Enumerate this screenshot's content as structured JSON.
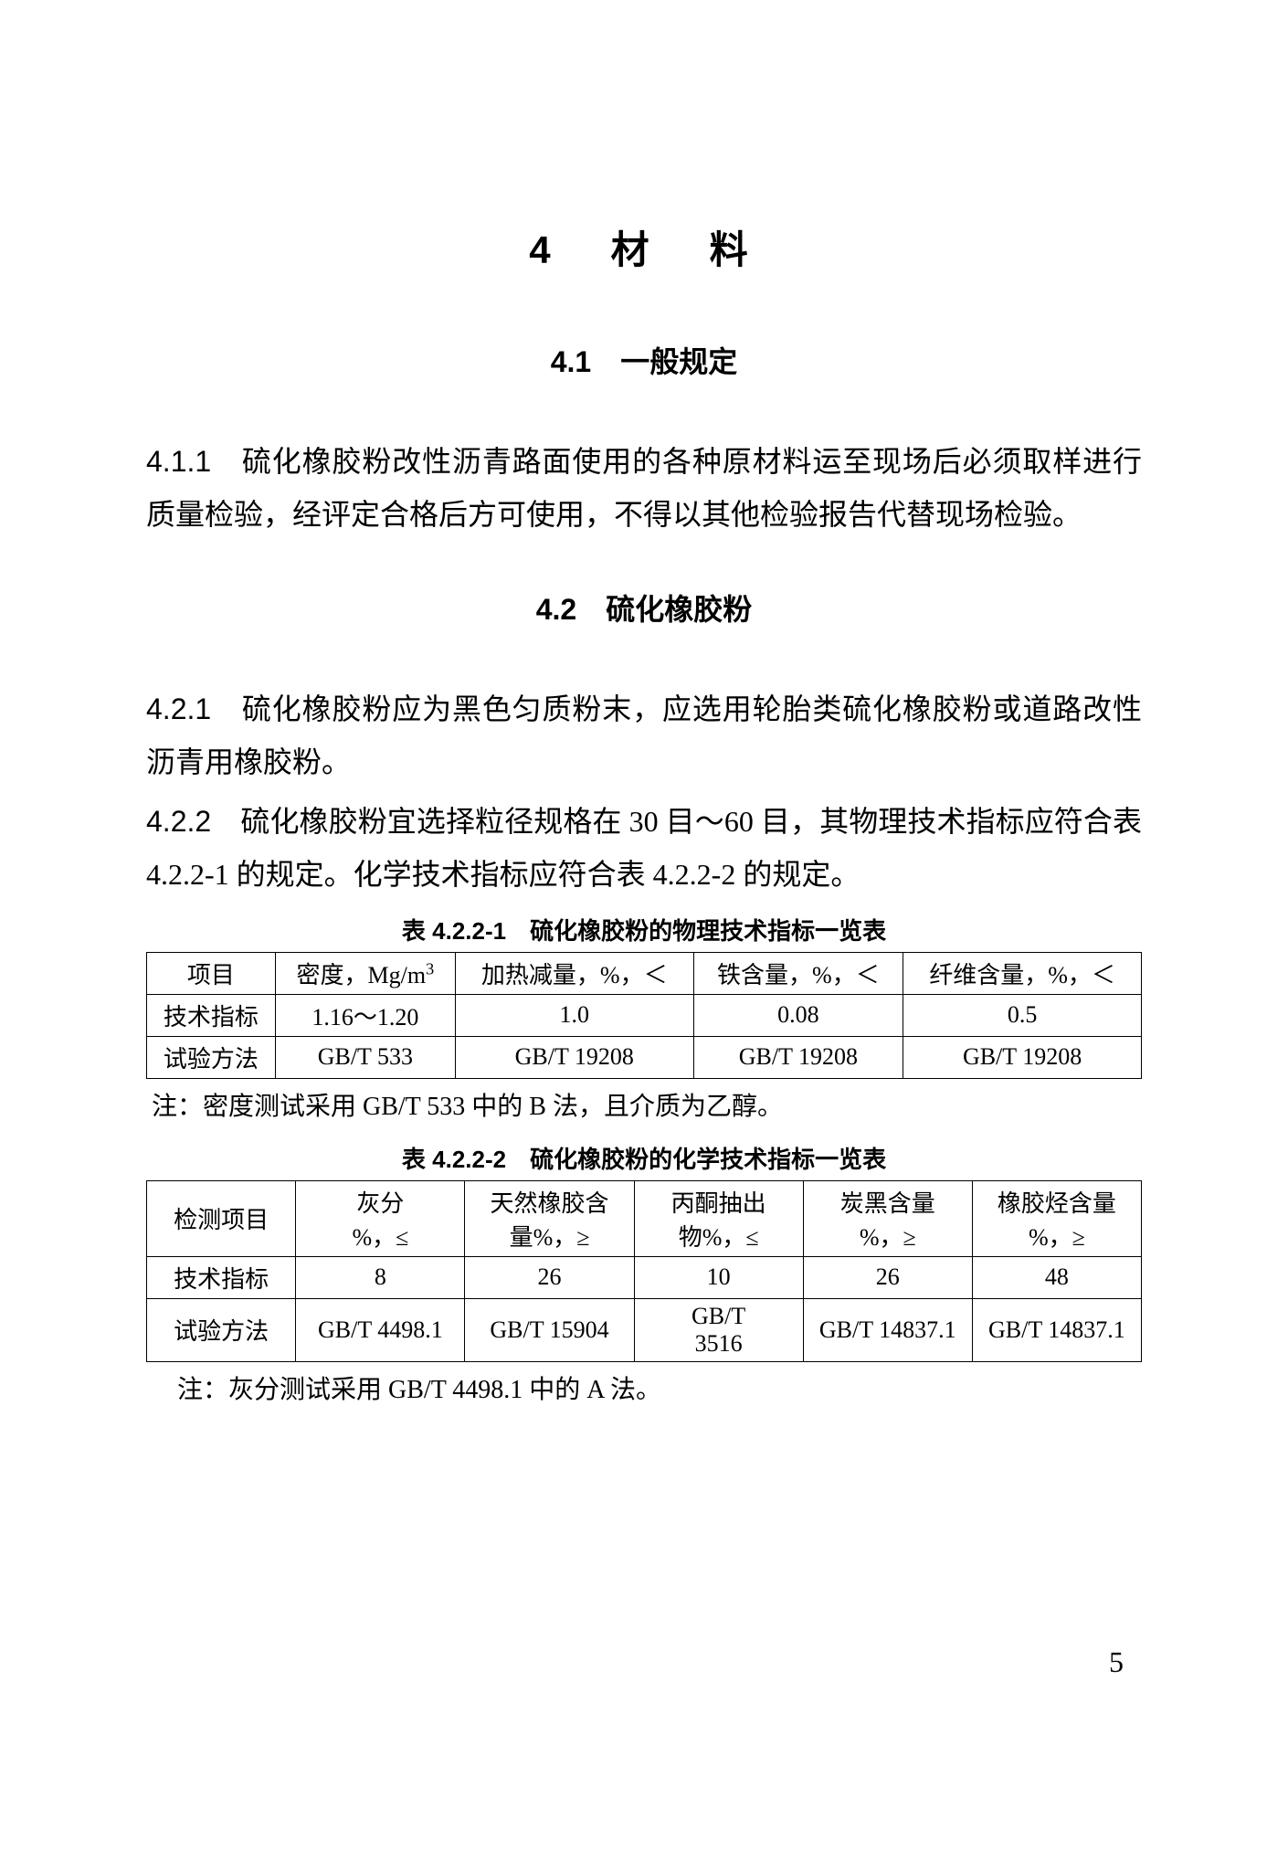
{
  "chapter": {
    "number": "4",
    "title": "材　料"
  },
  "sections": {
    "s41": {
      "number": "4.1",
      "title": "一般规定"
    },
    "s42": {
      "number": "4.2",
      "title": "硫化橡胶粉"
    }
  },
  "paragraphs": {
    "p411": {
      "num": "4.1.1",
      "text": "硫化橡胶粉改性沥青路面使用的各种原材料运至现场后必须取样进行质量检验，经评定合格后方可使用，不得以其他检验报告代替现场检验。"
    },
    "p421": {
      "num": "4.2.1",
      "text": "硫化橡胶粉应为黑色匀质粉末，应选用轮胎类硫化橡胶粉或道路改性沥青用橡胶粉。"
    },
    "p422": {
      "num": "4.2.2",
      "text": "硫化橡胶粉宜选择粒径规格在 30 目～60 目，其物理技术指标应符合表 4.2.2-1 的规定。化学技术指标应符合表 4.2.2-2 的规定。"
    }
  },
  "table1": {
    "title": "表 4.2.2-1　硫化橡胶粉的物理技术指标一览表",
    "headers": [
      "项目",
      "密度，Mg/m",
      "加热减量，%，＜",
      "铁含量，%，＜",
      "纤维含量，%，＜"
    ],
    "density_sup": "3",
    "rows": [
      [
        "技术指标",
        "1.16～1.20",
        "1.0",
        "0.08",
        "0.5"
      ],
      [
        "试验方法",
        "GB/T 533",
        "GB/T 19208",
        "GB/T 19208",
        "GB/T 19208"
      ]
    ],
    "note": "注：密度测试采用 GB/T 533 中的 B 法，且介质为乙醇。"
  },
  "table2": {
    "title": "表 4.2.2-2　硫化橡胶粉的化学技术指标一览表",
    "headers": {
      "h0": "检测项目",
      "h1a": "灰分",
      "h1b": "%，≤",
      "h2a": "天然橡胶含",
      "h2b": "量%，≥",
      "h3a": "丙酮抽出",
      "h3b": "物%，≤",
      "h4a": "炭黑含量",
      "h4b": "%，≥",
      "h5a": "橡胶烃含量",
      "h5b": "%，≥"
    },
    "rows": [
      [
        "技术指标",
        "8",
        "26",
        "10",
        "26",
        "48"
      ],
      {
        "label": "试验方法",
        "c1": "GB/T 4498.1",
        "c2": "GB/T 15904",
        "c3a": "GB/T",
        "c3b": "3516",
        "c4": "GB/T 14837.1",
        "c5": "GB/T 14837.1"
      }
    ],
    "note": "注：灰分测试采用 GB/T 4498.1 中的 A 法。"
  },
  "page_number": "5"
}
